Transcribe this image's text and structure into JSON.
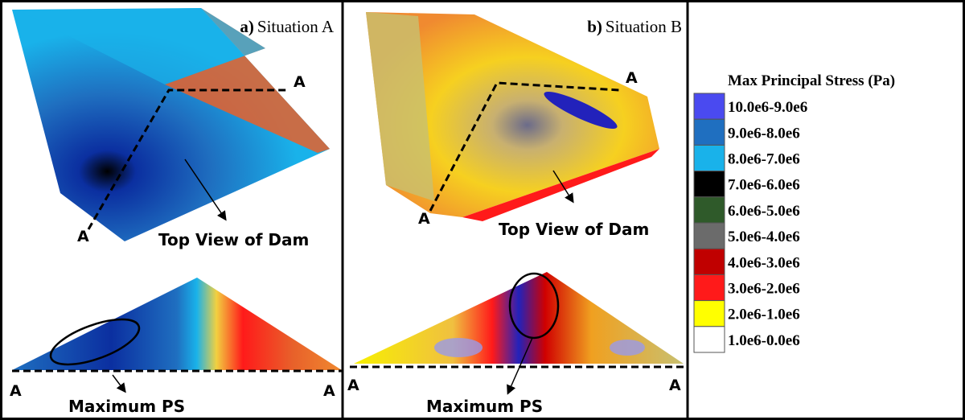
{
  "panels": [
    {
      "letter": "a)",
      "title": "Situation A",
      "top_view_label": "Top View of Dam",
      "section_label": "Maximum PS",
      "points": [
        "A",
        "A",
        "A",
        "A"
      ]
    },
    {
      "letter": "b)",
      "title": "Situation B",
      "top_view_label": "Top View of Dam",
      "section_label": "Maximum PS",
      "points": [
        "A",
        "A",
        "A",
        "A"
      ]
    }
  ],
  "legend": {
    "title": "Max Principal Stress (Pa)",
    "items": [
      {
        "label": "10.0e6-9.0e6",
        "color": "#4a4af0"
      },
      {
        "label": "9.0e6-8.0e6",
        "color": "#1f6fc0"
      },
      {
        "label": "8.0e6-7.0e6",
        "color": "#19b2ea"
      },
      {
        "label": "7.0e6-6.0e6",
        "color": "#000000"
      },
      {
        "label": "6.0e6-5.0e6",
        "color": "#2f5a2a"
      },
      {
        "label": "5.0e6-4.0e6",
        "color": "#6b6b6b"
      },
      {
        "label": "4.0e6-3.0e6",
        "color": "#c00000"
      },
      {
        "label": "3.0e6-2.0e6",
        "color": "#ff1a1a"
      },
      {
        "label": "2.0e6-1.0e6",
        "color": "#ffff00"
      },
      {
        "label": "1.0e6-0.0e6",
        "color": "#ffffff"
      }
    ]
  }
}
